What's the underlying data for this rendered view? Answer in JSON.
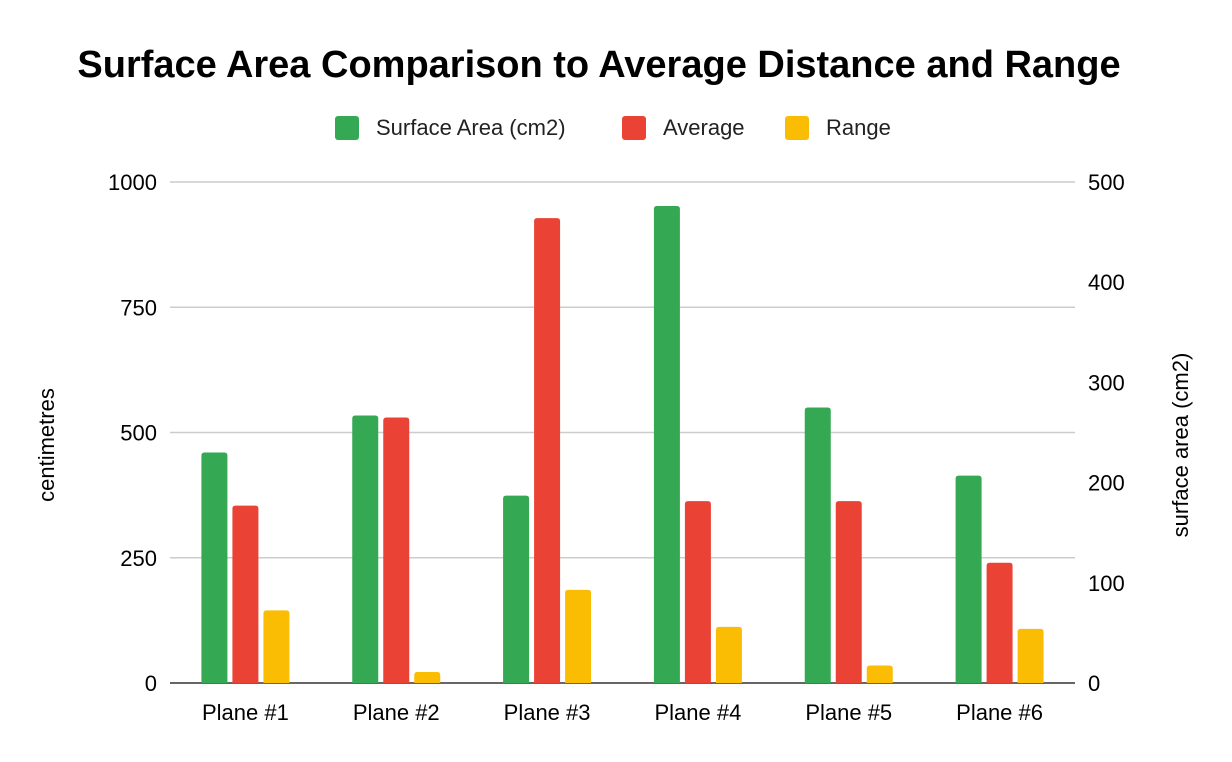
{
  "chart_data": {
    "type": "bar",
    "title": "Surface Area Comparison to Average Distance and Range",
    "categories": [
      "Plane #1",
      "Plane #2",
      "Plane #3",
      "Plane #4",
      "Plane #5",
      "Plane #6"
    ],
    "series": [
      {
        "name": "Surface Area (cm2)",
        "axis": "right",
        "color": "#34a853",
        "values": [
          230,
          267,
          187,
          476,
          275,
          207
        ]
      },
      {
        "name": "Average",
        "axis": "left",
        "color": "#ea4335",
        "values": [
          354,
          530,
          928,
          363,
          363,
          240
        ]
      },
      {
        "name": "Range",
        "axis": "left",
        "color": "#fbbc04",
        "values": [
          145,
          22,
          186,
          112,
          35,
          108
        ]
      }
    ],
    "ylabel": "centimetres",
    "ylabel_right": "surface area (cm2)",
    "ylim": [
      0,
      1000
    ],
    "ylim_right": [
      0,
      500
    ],
    "yticks": [
      "0",
      "250",
      "500",
      "750",
      "1000"
    ],
    "yticks_right": [
      "0",
      "100",
      "200",
      "300",
      "400",
      "500"
    ],
    "grid": true,
    "legend_position": "top-center"
  }
}
